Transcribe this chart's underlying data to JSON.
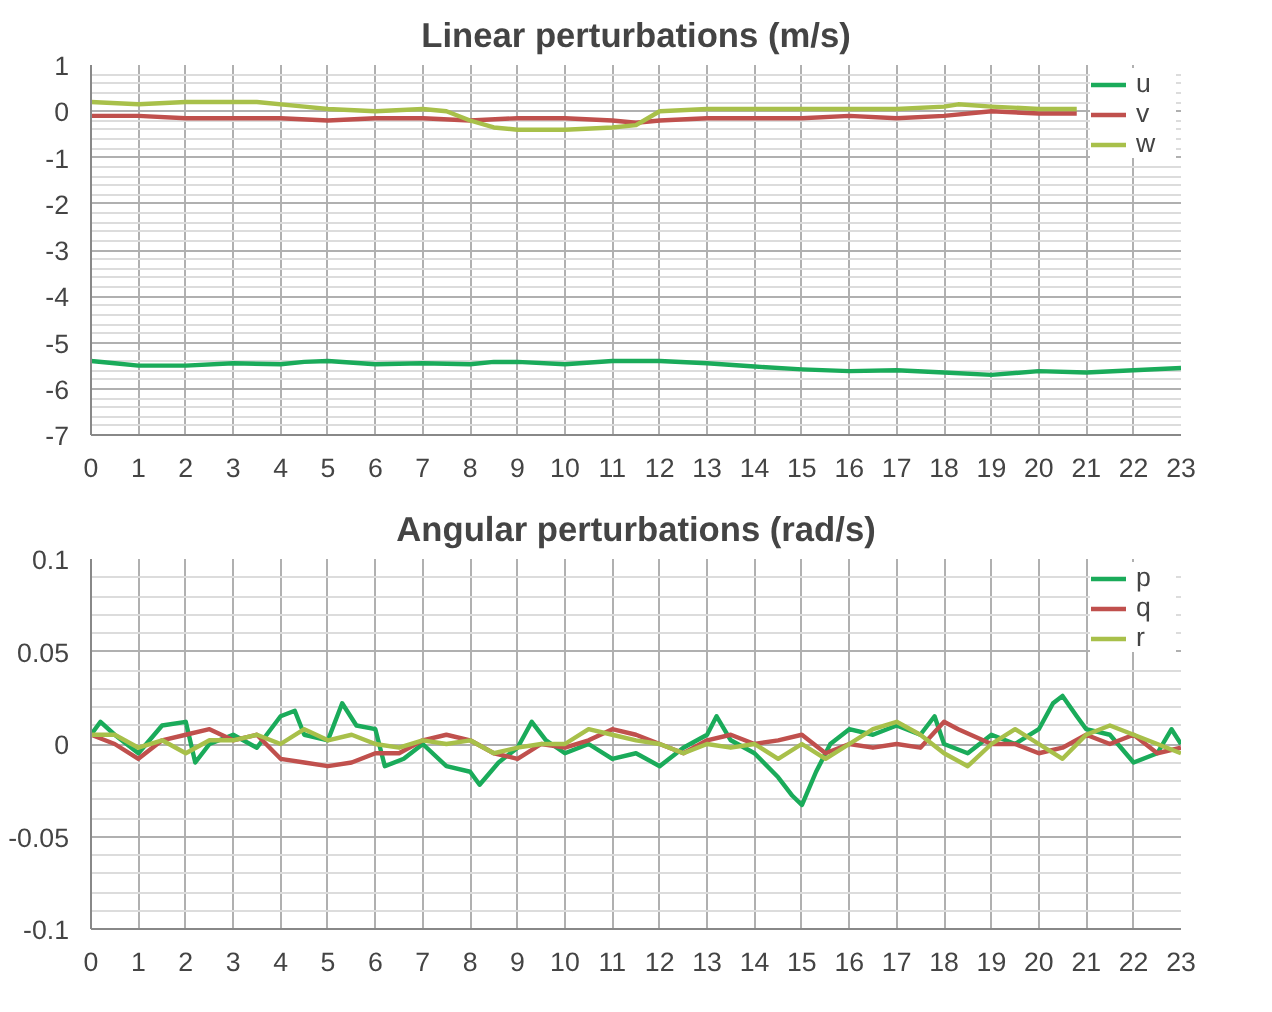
{
  "chart_data": [
    {
      "type": "line",
      "title": "Linear perturbations (m/s)",
      "xlim": [
        0,
        23
      ],
      "xticks": [
        0,
        1,
        2,
        3,
        4,
        5,
        6,
        7,
        8,
        9,
        10,
        11,
        12,
        13,
        14,
        15,
        16,
        17,
        18,
        19,
        20,
        21,
        22,
        23
      ],
      "ylim": [
        -7,
        1
      ],
      "yticks": [
        -7,
        -6,
        -5,
        -4,
        -3,
        -2,
        -1,
        0,
        1
      ],
      "grid": true,
      "legend": "right",
      "series": [
        {
          "name": "u",
          "color": "#1aab5a",
          "x": [
            0,
            0.5,
            1,
            2,
            3,
            4,
            4.5,
            5,
            6,
            7,
            8,
            8.5,
            9,
            10,
            11,
            12,
            13,
            14,
            15,
            16,
            17,
            18,
            19,
            20,
            21,
            22,
            23
          ],
          "values": [
            -5.4,
            -5.45,
            -5.5,
            -5.5,
            -5.45,
            -5.47,
            -5.42,
            -5.4,
            -5.47,
            -5.45,
            -5.47,
            -5.42,
            -5.42,
            -5.47,
            -5.4,
            -5.4,
            -5.45,
            -5.52,
            -5.58,
            -5.62,
            -5.6,
            -5.65,
            -5.7,
            -5.62,
            -5.65,
            -5.6,
            -5.55
          ]
        },
        {
          "name": "v",
          "color": "#c0504d",
          "x": [
            0,
            1,
            2,
            3,
            4,
            5,
            6,
            7,
            8,
            9,
            10,
            11,
            11.5,
            12,
            13,
            14,
            15,
            16,
            17,
            18,
            19,
            20,
            20.8
          ],
          "values": [
            -0.1,
            -0.1,
            -0.15,
            -0.15,
            -0.15,
            -0.2,
            -0.15,
            -0.15,
            -0.2,
            -0.15,
            -0.15,
            -0.2,
            -0.25,
            -0.2,
            -0.15,
            -0.15,
            -0.15,
            -0.1,
            -0.15,
            -0.1,
            0,
            -0.05,
            -0.05
          ]
        },
        {
          "name": "w",
          "color": "#a8c04a",
          "x": [
            0,
            1,
            2,
            3,
            3.5,
            4.5,
            5,
            6,
            7,
            7.5,
            8,
            8.5,
            9,
            10,
            11,
            11.5,
            12,
            13,
            14,
            15,
            16,
            17,
            18,
            18.3,
            19,
            20,
            20.8
          ],
          "values": [
            0.2,
            0.15,
            0.2,
            0.2,
            0.2,
            0.1,
            0.05,
            0,
            0.05,
            0,
            -0.2,
            -0.35,
            -0.4,
            -0.4,
            -0.35,
            -0.3,
            0,
            0.05,
            0.05,
            0.05,
            0.05,
            0.05,
            0.1,
            0.15,
            0.1,
            0.05,
            0.05
          ]
        }
      ]
    },
    {
      "type": "line",
      "title": "Angular perturbations (rad/s)",
      "xlim": [
        0,
        23
      ],
      "xticks": [
        0,
        1,
        2,
        3,
        4,
        5,
        6,
        7,
        8,
        9,
        10,
        11,
        12,
        13,
        14,
        15,
        16,
        17,
        18,
        19,
        20,
        21,
        22,
        23
      ],
      "ylim": [
        -0.1,
        0.1
      ],
      "yticks": [
        -0.1,
        -0.05,
        0,
        0.05,
        0.1
      ],
      "grid": true,
      "legend": "right",
      "series": [
        {
          "name": "p",
          "color": "#1aab5a",
          "x": [
            0,
            0.2,
            0.5,
            1,
            1.5,
            2,
            2.2,
            2.5,
            3,
            3.5,
            4,
            4.3,
            4.5,
            5,
            5.3,
            5.6,
            6,
            6.2,
            6.6,
            7,
            7.5,
            8,
            8.2,
            8.6,
            9,
            9.3,
            9.6,
            10,
            10.5,
            11,
            11.5,
            12,
            12.5,
            13,
            13.2,
            13.5,
            14,
            14.5,
            14.8,
            15,
            15.3,
            15.6,
            16,
            16.5,
            17,
            17.5,
            17.8,
            18,
            18.5,
            19,
            19.5,
            20,
            20.3,
            20.5,
            20.8,
            21,
            21.5,
            22,
            22.5,
            22.8,
            23
          ],
          "values": [
            0.005,
            0.012,
            0.005,
            -0.005,
            0.01,
            0.012,
            -0.01,
            0.0,
            0.005,
            -0.002,
            0.015,
            0.018,
            0.005,
            0.002,
            0.022,
            0.01,
            0.008,
            -0.012,
            -0.008,
            0.0,
            -0.012,
            -0.015,
            -0.022,
            -0.01,
            -0.002,
            0.012,
            0.002,
            -0.005,
            0.0,
            -0.008,
            -0.005,
            -0.012,
            -0.002,
            0.005,
            0.015,
            0.002,
            -0.005,
            -0.018,
            -0.028,
            -0.033,
            -0.015,
            0.0,
            0.008,
            0.005,
            0.01,
            0.005,
            0.015,
            0.0,
            -0.005,
            0.005,
            0.0,
            0.008,
            0.022,
            0.026,
            0.015,
            0.008,
            0.005,
            -0.01,
            -0.005,
            0.008,
            0.0
          ]
        },
        {
          "name": "q",
          "color": "#c0504d",
          "x": [
            0,
            0.5,
            1,
            1.5,
            2,
            2.5,
            3,
            3.5,
            4,
            4.5,
            5,
            5.5,
            6,
            6.5,
            7,
            7.5,
            8,
            8.5,
            9,
            9.5,
            10,
            10.5,
            11,
            11.5,
            12,
            12.5,
            13,
            13.5,
            14,
            14.5,
            15,
            15.5,
            16,
            16.5,
            17,
            17.5,
            18,
            18.3,
            19,
            19.5,
            20,
            20.5,
            21,
            21.5,
            22,
            22.5,
            23
          ],
          "values": [
            0.005,
            0.0,
            -0.008,
            0.002,
            0.005,
            0.008,
            0.002,
            0.005,
            -0.008,
            -0.01,
            -0.012,
            -0.01,
            -0.005,
            -0.005,
            0.002,
            0.005,
            0.002,
            -0.005,
            -0.008,
            0.0,
            -0.002,
            0.002,
            0.008,
            0.005,
            0.0,
            -0.005,
            0.002,
            0.005,
            0.0,
            0.002,
            0.005,
            -0.005,
            0.0,
            -0.002,
            0.0,
            -0.002,
            0.012,
            0.008,
            0.0,
            0.0,
            -0.005,
            -0.002,
            0.005,
            0.0,
            0.005,
            -0.005,
            -0.002
          ]
        },
        {
          "name": "r",
          "color": "#a8c04a",
          "x": [
            0,
            0.5,
            1,
            1.5,
            2,
            2.5,
            3,
            3.5,
            4,
            4.5,
            5,
            5.5,
            6,
            6.5,
            7,
            7.5,
            8,
            8.5,
            9,
            9.5,
            10,
            10.5,
            11,
            11.5,
            12,
            12.5,
            13,
            13.5,
            14,
            14.5,
            15,
            15.5,
            16,
            16.5,
            17,
            17.5,
            18,
            18.5,
            19,
            19.5,
            20,
            20.5,
            21,
            21.5,
            22,
            22.5,
            23
          ],
          "values": [
            0.005,
            0.005,
            -0.002,
            0.002,
            -0.005,
            0.002,
            0.002,
            0.005,
            0.0,
            0.008,
            0.002,
            0.005,
            0.0,
            -0.002,
            0.002,
            0.0,
            0.002,
            -0.005,
            -0.002,
            0.0,
            0.0,
            0.008,
            0.005,
            0.002,
            0.0,
            -0.005,
            0.0,
            -0.002,
            0.0,
            -0.008,
            0.0,
            -0.008,
            0.0,
            0.008,
            0.012,
            0.005,
            -0.005,
            -0.012,
            0.0,
            0.008,
            0.0,
            -0.008,
            0.005,
            0.01,
            0.005,
            0.0,
            -0.005
          ]
        }
      ]
    }
  ]
}
